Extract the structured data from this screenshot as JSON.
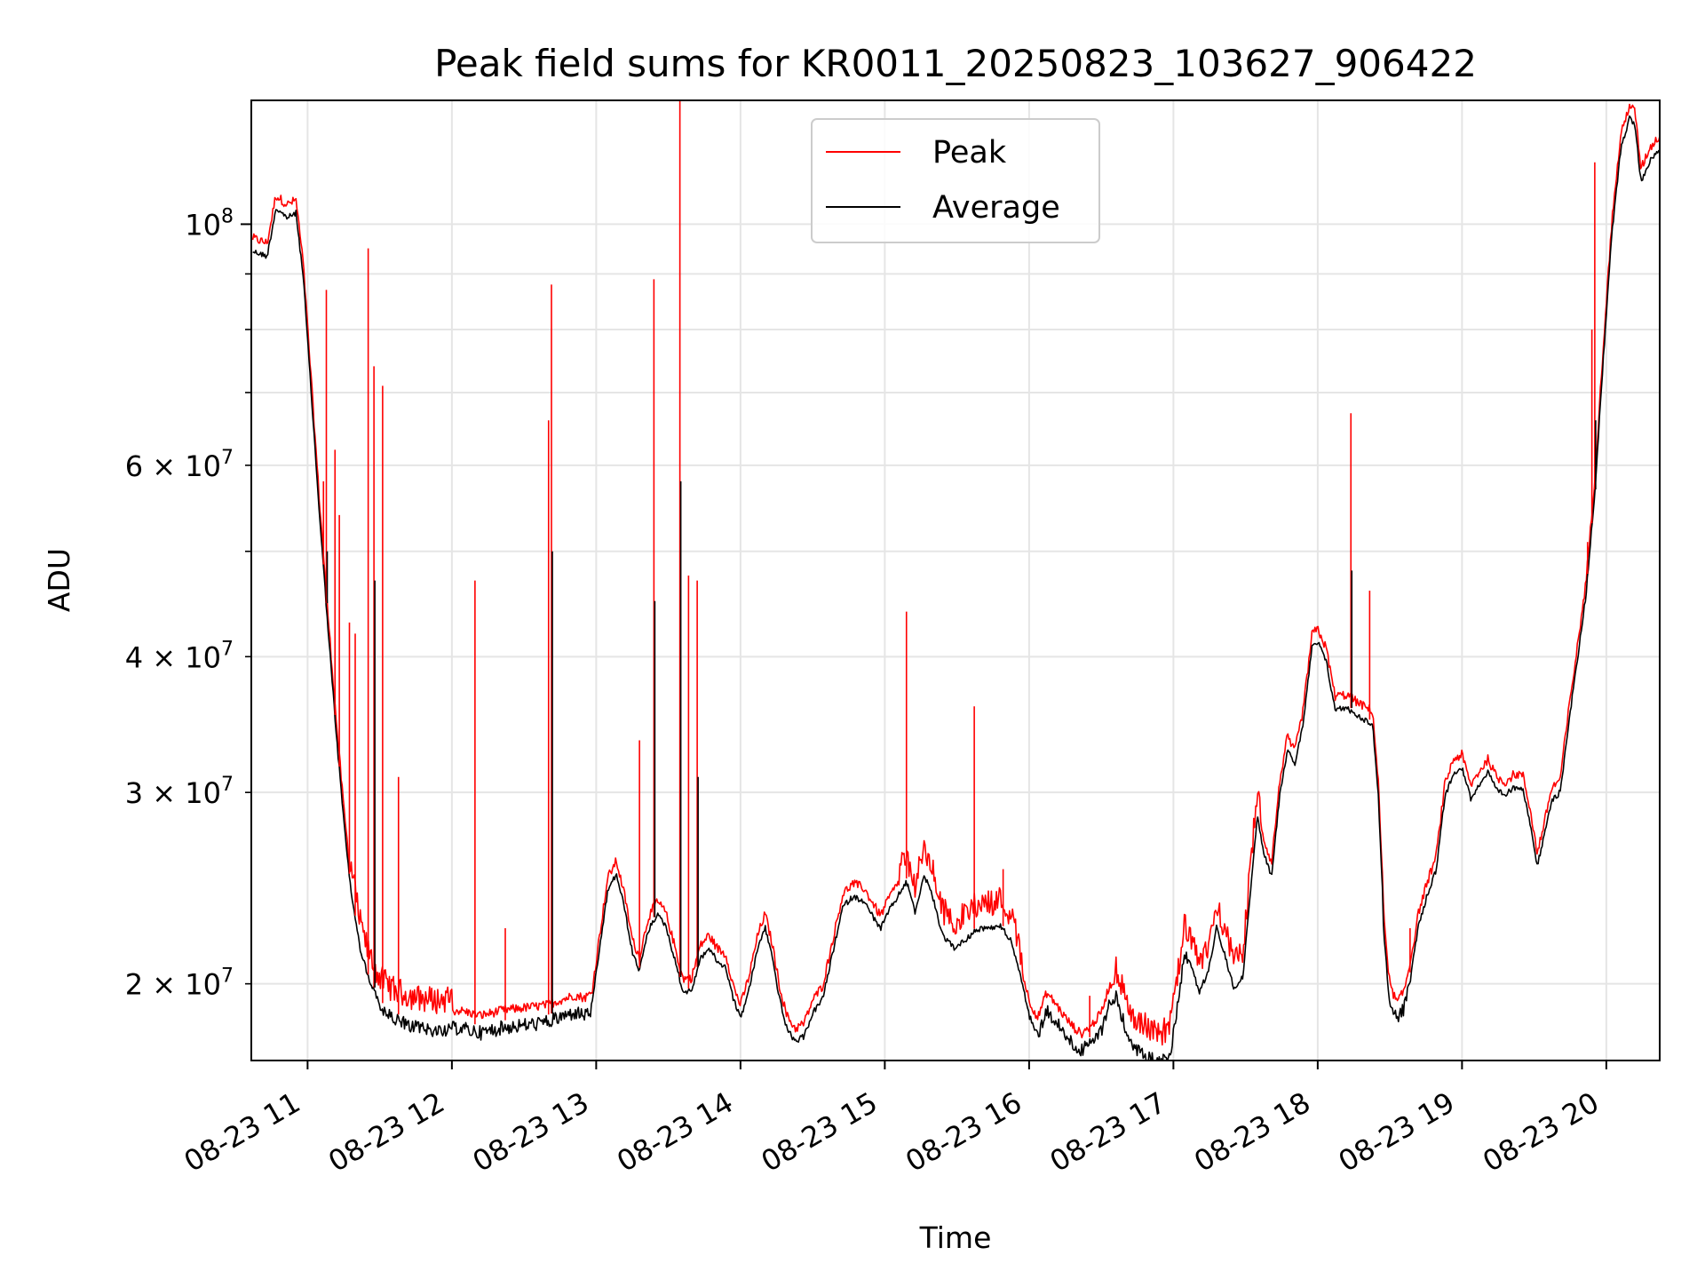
{
  "chart_data": {
    "type": "line",
    "title": "Peak field sums for KR0011_20250823_103627_906422",
    "xlabel": "Time",
    "ylabel": "ADU",
    "x_unit": "hours (2025-08-23)",
    "xlim": [
      10.61,
      20.37
    ],
    "ylim": [
      17000000,
      130000000
    ],
    "y_scale": "log",
    "grid": true,
    "legend_position": "top-center",
    "x_ticks": [
      {
        "value": 11,
        "label": "08-23 11"
      },
      {
        "value": 12,
        "label": "08-23 12"
      },
      {
        "value": 13,
        "label": "08-23 13"
      },
      {
        "value": 14,
        "label": "08-23 14"
      },
      {
        "value": 15,
        "label": "08-23 15"
      },
      {
        "value": 16,
        "label": "08-23 16"
      },
      {
        "value": 17,
        "label": "08-23 17"
      },
      {
        "value": 18,
        "label": "08-23 18"
      },
      {
        "value": 19,
        "label": "08-23 19"
      },
      {
        "value": 20,
        "label": "08-23 20"
      }
    ],
    "y_ticks_major": [
      {
        "value": 100000000,
        "base": "10",
        "exp": "8",
        "coef": ""
      }
    ],
    "y_ticks_minor": [
      {
        "value": 20000000,
        "coef": "2",
        "base": "10",
        "exp": "7",
        "labeled": true
      },
      {
        "value": 30000000,
        "coef": "3",
        "base": "10",
        "exp": "7",
        "labeled": true
      },
      {
        "value": 40000000,
        "coef": "4",
        "base": "10",
        "exp": "7",
        "labeled": true
      },
      {
        "value": 50000000,
        "labeled": false
      },
      {
        "value": 60000000,
        "coef": "6",
        "base": "10",
        "exp": "7",
        "labeled": true
      },
      {
        "value": 70000000,
        "labeled": false
      },
      {
        "value": 80000000,
        "labeled": false
      },
      {
        "value": 90000000,
        "labeled": false
      }
    ],
    "baseline_points": [
      [
        10.62,
        95000000
      ],
      [
        10.72,
        94000000
      ],
      [
        10.78,
        104000000
      ],
      [
        10.86,
        102000000
      ],
      [
        10.92,
        103000000
      ],
      [
        10.97,
        90000000
      ],
      [
        11.02,
        72000000
      ],
      [
        11.08,
        55000000
      ],
      [
        11.14,
        43000000
      ],
      [
        11.2,
        34000000
      ],
      [
        11.25,
        28500000
      ],
      [
        11.3,
        24500000
      ],
      [
        11.36,
        21800000
      ],
      [
        11.42,
        20400000
      ],
      [
        11.5,
        19300000
      ],
      [
        11.6,
        18800000
      ],
      [
        11.75,
        18500000
      ],
      [
        11.9,
        18400000
      ],
      [
        12.05,
        18500000
      ],
      [
        12.2,
        18300000
      ],
      [
        12.35,
        18500000
      ],
      [
        12.5,
        18600000
      ],
      [
        12.65,
        18700000
      ],
      [
        12.75,
        18900000
      ],
      [
        12.85,
        19100000
      ],
      [
        12.92,
        19000000
      ],
      [
        12.97,
        19200000
      ],
      [
        13.03,
        22000000
      ],
      [
        13.08,
        24500000
      ],
      [
        13.14,
        25400000
      ],
      [
        13.2,
        23500000
      ],
      [
        13.25,
        21500000
      ],
      [
        13.3,
        20700000
      ],
      [
        13.36,
        22500000
      ],
      [
        13.42,
        23300000
      ],
      [
        13.48,
        22800000
      ],
      [
        13.54,
        21300000
      ],
      [
        13.6,
        19800000
      ],
      [
        13.66,
        19800000
      ],
      [
        13.72,
        21200000
      ],
      [
        13.78,
        21700000
      ],
      [
        13.84,
        21100000
      ],
      [
        13.9,
        20800000
      ],
      [
        13.95,
        19500000
      ],
      [
        14.0,
        18700000
      ],
      [
        14.06,
        19900000
      ],
      [
        14.12,
        21700000
      ],
      [
        14.17,
        22700000
      ],
      [
        14.22,
        21300000
      ],
      [
        14.27,
        19500000
      ],
      [
        14.32,
        18300000
      ],
      [
        14.38,
        17800000
      ],
      [
        14.44,
        18000000
      ],
      [
        14.5,
        18900000
      ],
      [
        14.57,
        19500000
      ],
      [
        14.64,
        21500000
      ],
      [
        14.71,
        23700000
      ],
      [
        14.78,
        24200000
      ],
      [
        14.85,
        24000000
      ],
      [
        14.91,
        23300000
      ],
      [
        14.97,
        22600000
      ],
      [
        15.03,
        23500000
      ],
      [
        15.09,
        24200000
      ],
      [
        15.15,
        25000000
      ],
      [
        15.21,
        23400000
      ],
      [
        15.27,
        25300000
      ],
      [
        15.32,
        24500000
      ],
      [
        15.4,
        22300000
      ],
      [
        15.48,
        21700000
      ],
      [
        15.56,
        22100000
      ],
      [
        15.64,
        22600000
      ],
      [
        15.72,
        22600000
      ],
      [
        15.8,
        22800000
      ],
      [
        15.88,
        22000000
      ],
      [
        15.94,
        20400000
      ],
      [
        16.0,
        18900000
      ],
      [
        16.06,
        18200000
      ],
      [
        16.12,
        19200000
      ],
      [
        16.18,
        18800000
      ],
      [
        16.24,
        18300000
      ],
      [
        16.3,
        17900000
      ],
      [
        16.36,
        17600000
      ],
      [
        16.43,
        17900000
      ],
      [
        16.5,
        18400000
      ],
      [
        16.55,
        19400000
      ],
      [
        16.6,
        19800000
      ],
      [
        16.66,
        18600000
      ],
      [
        16.72,
        17800000
      ],
      [
        16.78,
        17500000
      ],
      [
        16.85,
        17300000
      ],
      [
        16.92,
        17200000
      ],
      [
        16.98,
        17500000
      ],
      [
        17.04,
        19800000
      ],
      [
        17.08,
        21700000
      ],
      [
        17.13,
        20700000
      ],
      [
        17.18,
        19800000
      ],
      [
        17.24,
        20600000
      ],
      [
        17.3,
        22700000
      ],
      [
        17.36,
        21300000
      ],
      [
        17.42,
        19900000
      ],
      [
        17.48,
        20400000
      ],
      [
        17.53,
        24000000
      ],
      [
        17.58,
        28700000
      ],
      [
        17.63,
        26500000
      ],
      [
        17.68,
        25300000
      ],
      [
        17.74,
        30300000
      ],
      [
        17.79,
        33000000
      ],
      [
        17.84,
        32000000
      ],
      [
        17.9,
        35000000
      ],
      [
        17.96,
        41000000
      ],
      [
        18.0,
        41500000
      ],
      [
        18.06,
        39800000
      ],
      [
        18.12,
        36000000
      ],
      [
        18.2,
        36100000
      ],
      [
        18.28,
        35500000
      ],
      [
        18.34,
        35100000
      ],
      [
        18.38,
        34900000
      ],
      [
        18.42,
        30000000
      ],
      [
        18.46,
        22500000
      ],
      [
        18.5,
        19500000
      ],
      [
        18.55,
        18800000
      ],
      [
        18.6,
        19300000
      ],
      [
        18.65,
        20800000
      ],
      [
        18.7,
        22800000
      ],
      [
        18.76,
        24300000
      ],
      [
        18.82,
        25600000
      ],
      [
        18.88,
        29800000
      ],
      [
        18.94,
        31500000
      ],
      [
        19.0,
        31800000
      ],
      [
        19.06,
        29800000
      ],
      [
        19.12,
        30700000
      ],
      [
        19.18,
        31500000
      ],
      [
        19.24,
        30300000
      ],
      [
        19.3,
        30000000
      ],
      [
        19.36,
        30500000
      ],
      [
        19.42,
        30500000
      ],
      [
        19.48,
        28000000
      ],
      [
        19.52,
        25800000
      ],
      [
        19.57,
        27500000
      ],
      [
        19.62,
        29600000
      ],
      [
        19.68,
        30200000
      ],
      [
        19.74,
        35000000
      ],
      [
        19.8,
        40000000
      ],
      [
        19.86,
        46000000
      ],
      [
        19.92,
        57000000
      ],
      [
        19.98,
        76000000
      ],
      [
        20.04,
        99000000
      ],
      [
        20.1,
        118000000
      ],
      [
        20.16,
        126000000
      ],
      [
        20.2,
        124000000
      ],
      [
        20.24,
        110000000
      ],
      [
        20.3,
        115000000
      ],
      [
        20.37,
        118000000
      ]
    ],
    "peak_spikes": [
      [
        11.11,
        58000000
      ],
      [
        11.13,
        87000000
      ],
      [
        11.19,
        62000000
      ],
      [
        11.22,
        54000000
      ],
      [
        11.29,
        43000000
      ],
      [
        11.33,
        42000000
      ],
      [
        11.42,
        95000000
      ],
      [
        11.46,
        74000000
      ],
      [
        11.52,
        71000000
      ],
      [
        11.63,
        31000000
      ],
      [
        12.16,
        47000000
      ],
      [
        12.37,
        22500000
      ],
      [
        12.67,
        66000000
      ],
      [
        12.69,
        88000000
      ],
      [
        13.3,
        33500000
      ],
      [
        13.4,
        89000000
      ],
      [
        13.58,
        130000000
      ],
      [
        13.64,
        47500000
      ],
      [
        13.7,
        47000000
      ],
      [
        15.15,
        44000000
      ],
      [
        15.62,
        36000000
      ],
      [
        15.82,
        25500000
      ],
      [
        16.42,
        19500000
      ],
      [
        18.23,
        67000000
      ],
      [
        18.36,
        46000000
      ],
      [
        18.64,
        22500000
      ],
      [
        19.87,
        51000000
      ],
      [
        19.9,
        80000000
      ],
      [
        19.92,
        114000000
      ]
    ],
    "average_spikes": [
      [
        11.13,
        50000000
      ],
      [
        11.46,
        47000000
      ],
      [
        12.69,
        50000000
      ],
      [
        13.4,
        45000000
      ],
      [
        13.58,
        58000000
      ],
      [
        13.7,
        31000000
      ],
      [
        18.23,
        48000000
      ],
      [
        19.92,
        66000000
      ]
    ],
    "series": [
      {
        "name": "Peak",
        "color": "#ff0000"
      },
      {
        "name": "Average",
        "color": "#000000"
      }
    ]
  }
}
